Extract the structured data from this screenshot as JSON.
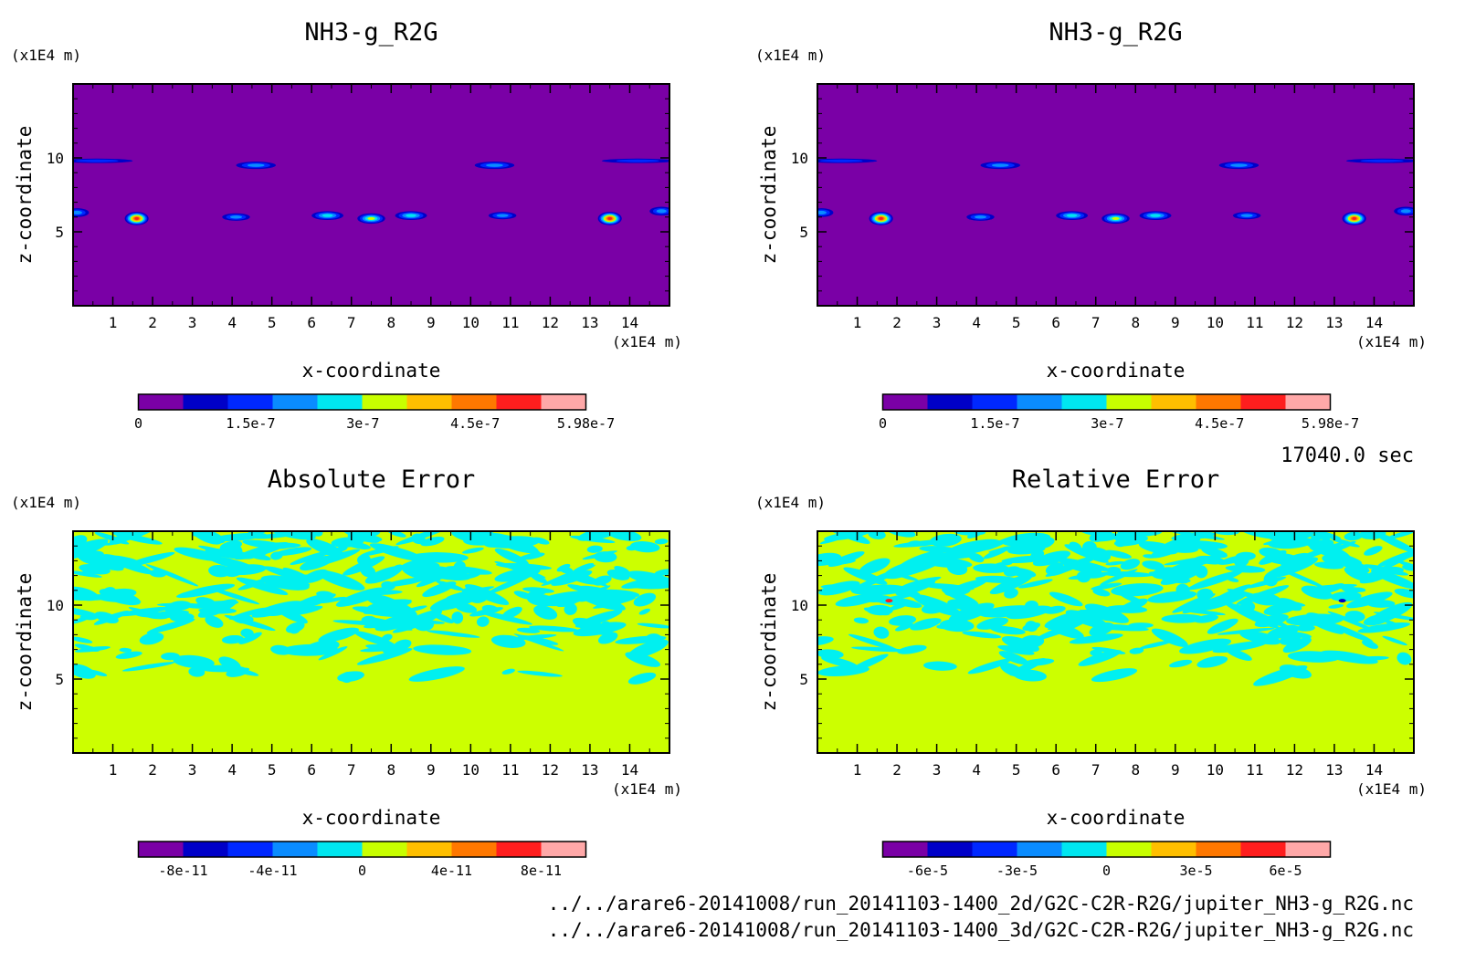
{
  "time_label": "17040.0 sec",
  "file_paths": [
    "../../arare6-20141008/run_20141103-1400_2d/G2C-C2R-R2G/jupiter_NH3-g_R2G.nc",
    "../../arare6-20141008/run_20141103-1400_3d/G2C-C2R-R2G/jupiter_NH3-g_R2G.nc"
  ],
  "colors": {
    "background": "#7a00a6",
    "error_background": "#ccff00",
    "error_anomaly": "#00f0f0",
    "palette": [
      "#7a00a6",
      "#0000c8",
      "#0028ff",
      "#0a8cff",
      "#00e6f0",
      "#c8ff00",
      "#ffbf00",
      "#ff7800",
      "#ff1e1e",
      "#ffa8a8"
    ]
  },
  "chart_data": [
    {
      "type": "heatmap",
      "title": "NH3-g_R2G",
      "xlabel": "x-coordinate",
      "ylabel": "z-coordinate",
      "x_unit": "(x1E4 m)",
      "y_unit": "(x1E4 m)",
      "xlim": [
        0,
        15
      ],
      "ylim": [
        0,
        15
      ],
      "x_ticks": [
        1,
        2,
        3,
        4,
        5,
        6,
        7,
        8,
        9,
        10,
        11,
        12,
        13,
        14
      ],
      "y_ticks": [
        5,
        10
      ],
      "background_value": 0,
      "features": [
        {
          "x": 0.1,
          "z": 6.3,
          "rx": 0.3,
          "rz": 0.3,
          "level": 3
        },
        {
          "x": 1.6,
          "z": 5.9,
          "rx": 0.3,
          "rz": 0.45,
          "level": 8
        },
        {
          "x": 4.1,
          "z": 6.0,
          "rx": 0.35,
          "rz": 0.25,
          "level": 3
        },
        {
          "x": 6.4,
          "z": 6.1,
          "rx": 0.4,
          "rz": 0.3,
          "level": 4
        },
        {
          "x": 7.5,
          "z": 5.9,
          "rx": 0.35,
          "rz": 0.35,
          "level": 5
        },
        {
          "x": 8.5,
          "z": 6.1,
          "rx": 0.4,
          "rz": 0.3,
          "level": 4
        },
        {
          "x": 10.8,
          "z": 6.1,
          "rx": 0.35,
          "rz": 0.25,
          "level": 3
        },
        {
          "x": 13.5,
          "z": 5.9,
          "rx": 0.3,
          "rz": 0.45,
          "level": 8
        },
        {
          "x": 14.8,
          "z": 6.4,
          "rx": 0.3,
          "rz": 0.3,
          "level": 3
        },
        {
          "x": 0.6,
          "z": 9.8,
          "rx": 0.9,
          "rz": 0.15,
          "level": 2
        },
        {
          "x": 4.6,
          "z": 9.5,
          "rx": 0.5,
          "rz": 0.25,
          "level": 3
        },
        {
          "x": 10.6,
          "z": 9.5,
          "rx": 0.5,
          "rz": 0.25,
          "level": 3
        },
        {
          "x": 14.2,
          "z": 9.8,
          "rx": 0.9,
          "rz": 0.15,
          "level": 2
        }
      ],
      "colorbar": {
        "min": 0,
        "max": 5.98e-07,
        "labels": [
          "0",
          "1.5e-7",
          "3e-7",
          "4.5e-7",
          "5.98e-7"
        ]
      }
    },
    {
      "type": "heatmap",
      "title": "NH3-g_R2G",
      "xlabel": "x-coordinate",
      "ylabel": "z-coordinate",
      "x_unit": "(x1E4 m)",
      "y_unit": "(x1E4 m)",
      "xlim": [
        0,
        15
      ],
      "ylim": [
        0,
        15
      ],
      "x_ticks": [
        1,
        2,
        3,
        4,
        5,
        6,
        7,
        8,
        9,
        10,
        11,
        12,
        13,
        14
      ],
      "y_ticks": [
        5,
        10
      ],
      "background_value": 0,
      "features": [
        {
          "x": 0.1,
          "z": 6.3,
          "rx": 0.3,
          "rz": 0.3,
          "level": 3
        },
        {
          "x": 1.6,
          "z": 5.9,
          "rx": 0.3,
          "rz": 0.45,
          "level": 8
        },
        {
          "x": 4.1,
          "z": 6.0,
          "rx": 0.35,
          "rz": 0.25,
          "level": 3
        },
        {
          "x": 6.4,
          "z": 6.1,
          "rx": 0.4,
          "rz": 0.3,
          "level": 4
        },
        {
          "x": 7.5,
          "z": 5.9,
          "rx": 0.35,
          "rz": 0.35,
          "level": 5
        },
        {
          "x": 8.5,
          "z": 6.1,
          "rx": 0.4,
          "rz": 0.3,
          "level": 4
        },
        {
          "x": 10.8,
          "z": 6.1,
          "rx": 0.35,
          "rz": 0.25,
          "level": 3
        },
        {
          "x": 13.5,
          "z": 5.9,
          "rx": 0.3,
          "rz": 0.45,
          "level": 8
        },
        {
          "x": 14.8,
          "z": 6.4,
          "rx": 0.3,
          "rz": 0.3,
          "level": 3
        },
        {
          "x": 0.6,
          "z": 9.8,
          "rx": 0.9,
          "rz": 0.15,
          "level": 2
        },
        {
          "x": 4.6,
          "z": 9.5,
          "rx": 0.5,
          "rz": 0.25,
          "level": 3
        },
        {
          "x": 10.6,
          "z": 9.5,
          "rx": 0.5,
          "rz": 0.25,
          "level": 3
        },
        {
          "x": 14.2,
          "z": 9.8,
          "rx": 0.9,
          "rz": 0.15,
          "level": 2
        }
      ],
      "colorbar": {
        "min": 0,
        "max": 5.98e-07,
        "labels": [
          "0",
          "1.5e-7",
          "3e-7",
          "4.5e-7",
          "5.98e-7"
        ]
      }
    },
    {
      "type": "heatmap",
      "title": "Absolute Error",
      "xlabel": "x-coordinate",
      "ylabel": "z-coordinate",
      "x_unit": "(x1E4 m)",
      "y_unit": "(x1E4 m)",
      "xlim": [
        0,
        15
      ],
      "ylim": [
        0,
        15
      ],
      "x_ticks": [
        1,
        2,
        3,
        4,
        5,
        6,
        7,
        8,
        9,
        10,
        11,
        12,
        13,
        14
      ],
      "y_ticks": [
        5,
        10
      ],
      "background_value": 0,
      "anomaly_band_z": [
        5,
        15
      ],
      "colorbar": {
        "min": -1e-10,
        "max": 1e-10,
        "labels": [
          "-8e-11",
          "-4e-11",
          "0",
          "4e-11",
          "8e-11"
        ]
      }
    },
    {
      "type": "heatmap",
      "title": "Relative Error",
      "xlabel": "x-coordinate",
      "ylabel": "z-coordinate",
      "x_unit": "(x1E4 m)",
      "y_unit": "(x1E4 m)",
      "xlim": [
        0,
        15
      ],
      "ylim": [
        0,
        15
      ],
      "x_ticks": [
        1,
        2,
        3,
        4,
        5,
        6,
        7,
        8,
        9,
        10,
        11,
        12,
        13,
        14
      ],
      "y_ticks": [
        5,
        10
      ],
      "background_value": 0,
      "anomaly_band_z": [
        5,
        15
      ],
      "colorbar": {
        "min": -7.5e-05,
        "max": 7.5e-05,
        "labels": [
          "-6e-5",
          "-3e-5",
          "0",
          "3e-5",
          "6e-5"
        ]
      }
    }
  ]
}
